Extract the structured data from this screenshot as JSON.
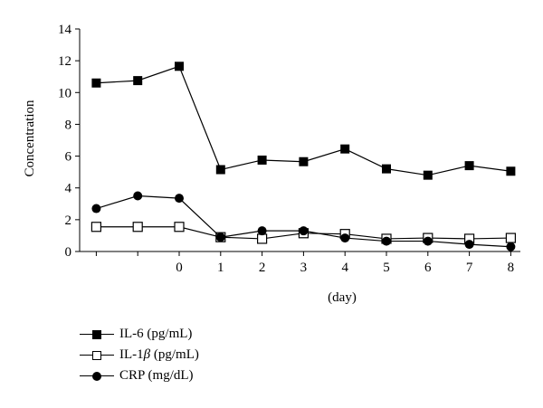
{
  "chart_data": {
    "type": "line",
    "title": "",
    "xlabel": "(day)",
    "ylabel": "Concentration",
    "ylim": [
      0,
      14
    ],
    "yticks": [
      0,
      2,
      4,
      6,
      8,
      10,
      12,
      14
    ],
    "xticks": [
      "0",
      "1",
      "2",
      "3",
      "4",
      "5",
      "6",
      "7",
      "8"
    ],
    "x": [
      -2,
      -1,
      0,
      1,
      2,
      3,
      4,
      5,
      6,
      7,
      8
    ],
    "grid": false,
    "legend_position": "bottom-left",
    "series": [
      {
        "name": "IL-6 (pg/mL)",
        "label_base": "IL-6",
        "label_greek": "",
        "label_unit": " (pg/mL)",
        "marker": "filled-square",
        "color": "#000000",
        "values": [
          10.6,
          10.75,
          11.65,
          5.15,
          5.75,
          5.65,
          6.45,
          5.2,
          4.8,
          5.4,
          5.05
        ]
      },
      {
        "name": "IL-1β (pg/mL)",
        "label_base": "IL-1",
        "label_greek": "β",
        "label_unit": " (pg/mL)",
        "marker": "open-square",
        "color": "#000000",
        "values": [
          1.55,
          1.55,
          1.55,
          0.9,
          0.8,
          1.15,
          1.1,
          0.8,
          0.85,
          0.8,
          0.85
        ]
      },
      {
        "name": "CRP (mg/dL)",
        "label_base": "CRP",
        "label_greek": "",
        "label_unit": " (mg/dL)",
        "marker": "filled-circle",
        "color": "#000000",
        "values": [
          2.7,
          3.5,
          3.35,
          0.9,
          1.3,
          1.3,
          0.85,
          0.65,
          0.65,
          0.45,
          0.3
        ]
      }
    ]
  }
}
